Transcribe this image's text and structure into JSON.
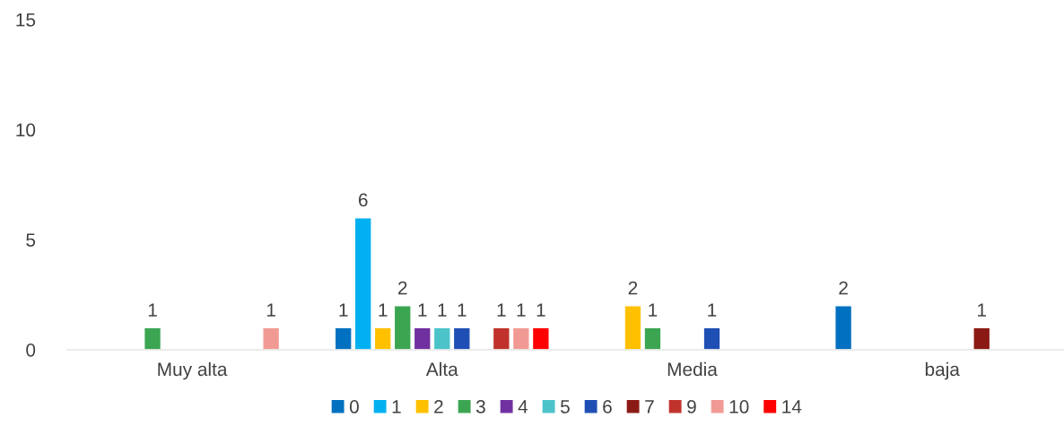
{
  "chart_data": {
    "type": "bar",
    "categories": [
      "Muy alta",
      "Alta",
      "Media",
      "baja"
    ],
    "series": [
      {
        "name": "0",
        "color": "#0070c0",
        "values": [
          null,
          1,
          null,
          2
        ]
      },
      {
        "name": "1",
        "color": "#00b0f0",
        "values": [
          null,
          6,
          null,
          null
        ]
      },
      {
        "name": "2",
        "color": "#ffc000",
        "values": [
          null,
          1,
          2,
          null
        ]
      },
      {
        "name": "3",
        "color": "#3ba552",
        "values": [
          1,
          2,
          1,
          null
        ]
      },
      {
        "name": "4",
        "color": "#7030a0",
        "values": [
          null,
          1,
          null,
          null
        ]
      },
      {
        "name": "5",
        "color": "#4bc3c9",
        "values": [
          null,
          1,
          null,
          null
        ]
      },
      {
        "name": "6",
        "color": "#1f4fb4",
        "values": [
          null,
          1,
          1,
          null
        ]
      },
      {
        "name": "7",
        "color": "#8b1a14",
        "values": [
          null,
          null,
          null,
          1
        ]
      },
      {
        "name": "9",
        "color": "#c0322b",
        "values": [
          null,
          1,
          null,
          null
        ]
      },
      {
        "name": "10",
        "color": "#f19a94",
        "values": [
          1,
          1,
          null,
          null
        ]
      },
      {
        "name": "14",
        "color": "#ff0000",
        "values": [
          null,
          1,
          null,
          null
        ]
      }
    ],
    "ylim": [
      0,
      15
    ],
    "yticks": [
      0,
      5,
      10,
      15
    ],
    "data_labels": true,
    "grid": false,
    "legend": "bottom"
  }
}
